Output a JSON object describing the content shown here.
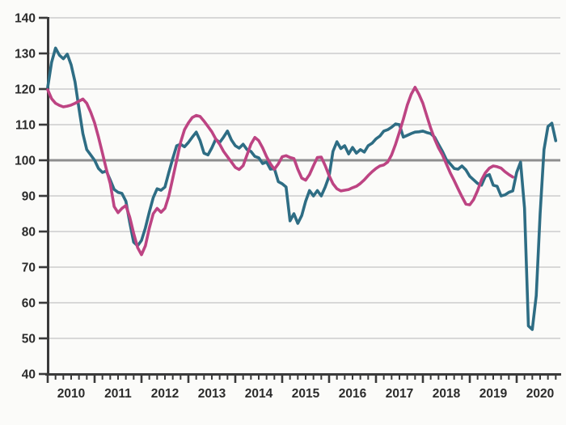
{
  "chart_data": {
    "type": "line",
    "title": "",
    "xlabel": "",
    "ylabel": "",
    "legend": "none",
    "grid": "horizontal",
    "y_axis": {
      "range": [
        40,
        140
      ],
      "tick_step": 10,
      "tick_labels": [
        "40",
        "50",
        "60",
        "70",
        "80",
        "90",
        "100",
        "110",
        "120",
        "130",
        "140"
      ],
      "emphasized_gridline": 100
    },
    "x_axis": {
      "year_labels": [
        "2010",
        "2011",
        "2012",
        "2013",
        "2014",
        "2015",
        "2016",
        "2017",
        "2018",
        "2019",
        "2020"
      ],
      "minor_tick_every_months": 2,
      "major_tick_every_months": 12,
      "months_per_year": 12
    },
    "series": [
      {
        "id": "teal-line",
        "color": "#2e6d84",
        "start": "2010-01",
        "values": [
          120.5,
          127.5,
          131.5,
          129.5,
          128.5,
          129.8,
          126.8,
          122,
          114.5,
          107.5,
          103,
          101.5,
          100,
          97.7,
          96.6,
          97,
          94.5,
          91.8,
          91,
          90.7,
          88.5,
          82.5,
          77,
          76,
          77.5,
          81,
          85.5,
          89.5,
          92,
          91.6,
          92.5,
          96.6,
          100.5,
          104.1,
          104.5,
          103.8,
          105,
          106.5,
          107.9,
          105.5,
          102,
          101.5,
          103.5,
          105.9,
          105,
          106.5,
          108.2,
          105.7,
          104.1,
          103.4,
          104.5,
          103,
          102.5,
          101.1,
          100.7,
          99.1,
          99.5,
          97.5,
          97.7,
          94,
          93.4,
          92.5,
          83,
          85,
          82.3,
          84.5,
          88.5,
          91.5,
          90,
          91.5,
          90,
          92.5,
          95.5,
          102.5,
          105.2,
          103.3,
          104.1,
          101.8,
          103.6,
          102,
          103,
          102.3,
          104.1,
          104.8,
          106,
          106.8,
          108.2,
          108.6,
          109.3,
          110.2,
          110,
          106.5,
          107,
          107.5,
          107.9,
          108,
          108.2,
          107.8,
          107.5,
          106.5,
          104.5,
          102.5,
          100.2,
          99,
          97.7,
          97.5,
          98.4,
          97.3,
          95.5,
          94.5,
          93.5,
          93,
          95.5,
          96,
          93,
          92.7,
          90,
          90.3,
          91,
          91.4,
          96.6,
          99.5,
          86.6,
          53.5,
          52.5,
          62,
          85,
          103,
          109.5,
          110.4,
          105.5
        ]
      },
      {
        "id": "pink-line",
        "color": "#bd4483",
        "start": "2010-01",
        "values": [
          119.8,
          117.3,
          116,
          115.4,
          115,
          115.2,
          115.5,
          116,
          116.6,
          117.2,
          116,
          113.5,
          110.5,
          106.5,
          102,
          97.5,
          93.5,
          87,
          85.3,
          86.5,
          87.3,
          84,
          79.5,
          75.5,
          73.5,
          76,
          81,
          85,
          86.5,
          85.4,
          86.5,
          90,
          95,
          100,
          105,
          108.6,
          110.5,
          112,
          112.6,
          112.3,
          111,
          109.5,
          108,
          106,
          104.5,
          102.5,
          101,
          99.5,
          98,
          97.4,
          98.5,
          101.5,
          104.5,
          106.4,
          105.5,
          103.5,
          101,
          99,
          97.5,
          99,
          101,
          101.3,
          100.8,
          100.5,
          97.5,
          95,
          94.4,
          96,
          98.5,
          100.8,
          100.9,
          98.5,
          95.7,
          93.4,
          92,
          91.4,
          91.6,
          91.8,
          92.3,
          92.7,
          93.5,
          94.5,
          95.7,
          96.8,
          97.7,
          98.4,
          98.7,
          99.5,
          101.5,
          104.5,
          107.9,
          111.5,
          115.5,
          118.5,
          120.5,
          118.5,
          116,
          112.5,
          109,
          106,
          103.5,
          101.5,
          99,
          96.5,
          94.3,
          92,
          89.8,
          87.7,
          87.5,
          89,
          91.5,
          94.5,
          96.5,
          97.8,
          98.4,
          98.2,
          97.8,
          96.8,
          96,
          95.3
        ]
      }
    ],
    "colors": {
      "background": "#fbfbf9",
      "gridline": "#cdcdcd",
      "emphasized_gridline": "#8e8e8e",
      "axis": "#3a3a3a",
      "tick_label": "#2b2b2b"
    }
  }
}
